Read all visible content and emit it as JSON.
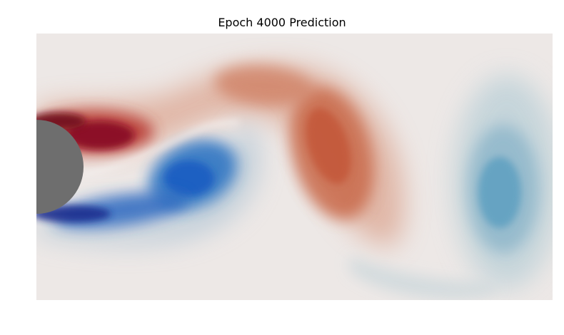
{
  "chart_data": {
    "type": "heatmap",
    "title": "Epoch 4000 Prediction",
    "xlabel": "",
    "ylabel": "",
    "axes_visible": false,
    "grid": false,
    "legend": "none",
    "field": "vorticity (wake behind cylinder)",
    "colormap": {
      "negative_strong": "#1a2f8f",
      "negative_mid": "#1f5fc2",
      "negative_weak": "#5a9ec0",
      "neutral": "#ede8e6",
      "positive_weak": "#d4876a",
      "positive_mid": "#c04a30",
      "positive_strong": "#8a0f28"
    },
    "obstacle": {
      "shape": "circle",
      "color": "#6e6e6e"
    },
    "background_color": "#ede8e6"
  }
}
